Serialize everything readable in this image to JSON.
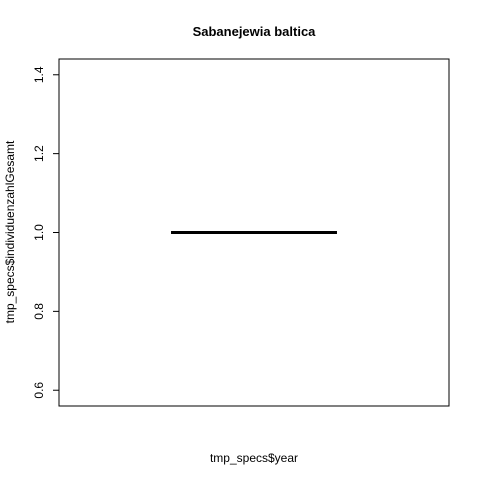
{
  "chart_data": {
    "type": "box",
    "title": "Sabanejewia baltica",
    "xlabel": "tmp_specs$year",
    "ylabel": "tmp_specs$individuenzahlGesamt",
    "ylim": [
      0.56,
      1.44
    ],
    "yticks": [
      0.6,
      0.8,
      1.0,
      1.2,
      1.4
    ],
    "ytick_labels": [
      "0.6",
      "0.8",
      "1.0",
      "1.2",
      "1.4"
    ],
    "grid": false,
    "legend": "none",
    "series": [
      {
        "min": 1.0,
        "q1": 1.0,
        "median": 1.0,
        "q3": 1.0,
        "max": 1.0
      }
    ],
    "colors": {
      "axis": "#000000",
      "median_line": "#000000",
      "background": "#ffffff"
    }
  }
}
